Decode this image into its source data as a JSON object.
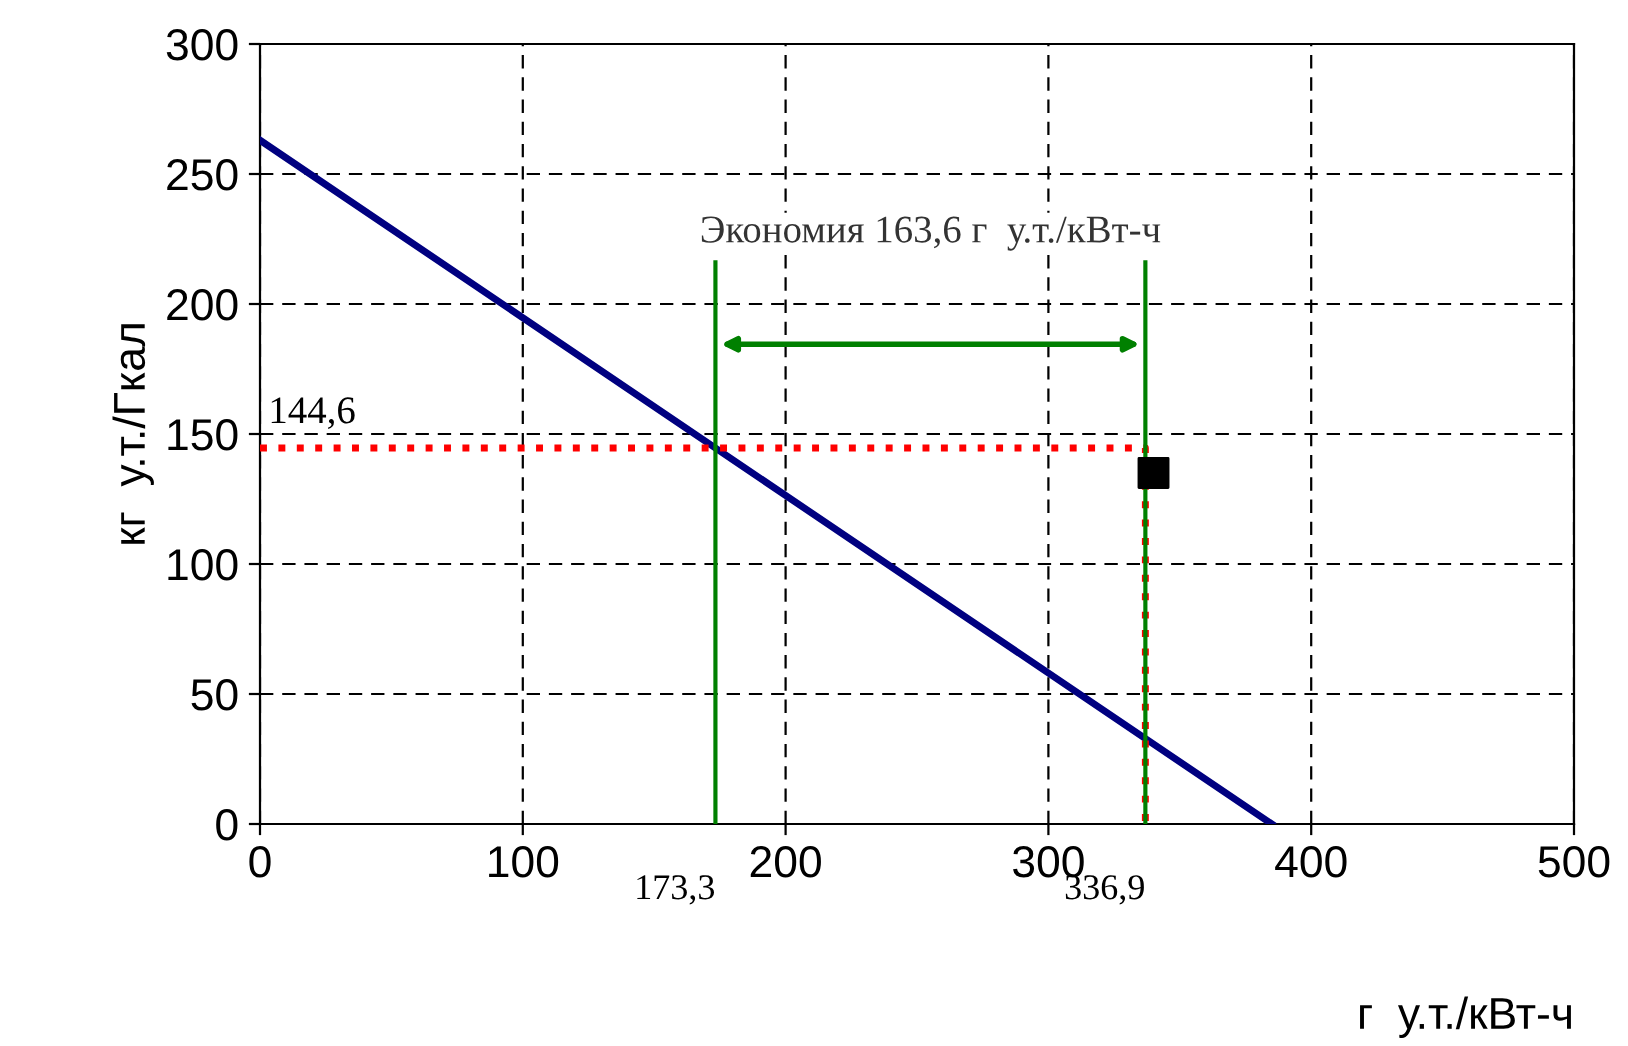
{
  "chart_data": {
    "type": "line",
    "xlabel": "г  у.т./кВт-ч",
    "ylabel": "кг  у.т./Гкал",
    "xlim": [
      0,
      500
    ],
    "xticks": [
      0,
      100,
      200,
      300,
      400,
      500
    ],
    "ylim": [
      0,
      300
    ],
    "yticks": [
      0,
      50,
      100,
      150,
      200,
      250,
      300
    ],
    "grid": true,
    "series": [
      {
        "x": [
          0,
          385
        ],
        "values": [
          263,
          0
        ],
        "color": "#000080",
        "line_style": "solid"
      },
      {
        "type": "line",
        "x": [
          0,
          336.9,
          336.9
        ],
        "values": [
          144.6,
          144.6,
          0
        ],
        "color": "#ff0000",
        "line_style": "dotted"
      },
      {
        "type": "line",
        "x": [
          173.3,
          173.3
        ],
        "values": [
          0,
          216
        ],
        "color": "#008000",
        "line_style": "solid"
      },
      {
        "type": "line",
        "x": [
          336.9,
          336.9
        ],
        "values": [
          0,
          216
        ],
        "color": "#008000",
        "line_style": "solid"
      },
      {
        "type": "scatter",
        "x": [
          340
        ],
        "values": [
          135
        ],
        "color": "#000000",
        "marker": "square"
      }
    ],
    "annotations": [
      "Экономия 163,6 г  у.т./кВт-ч",
      {
        "text": "144,6",
        "x": 0,
        "y": 144.6
      },
      {
        "text": "173,3",
        "x": 173.3,
        "y": 0
      },
      {
        "text": "336,9",
        "x": 336.9,
        "y": 0
      }
    ]
  }
}
